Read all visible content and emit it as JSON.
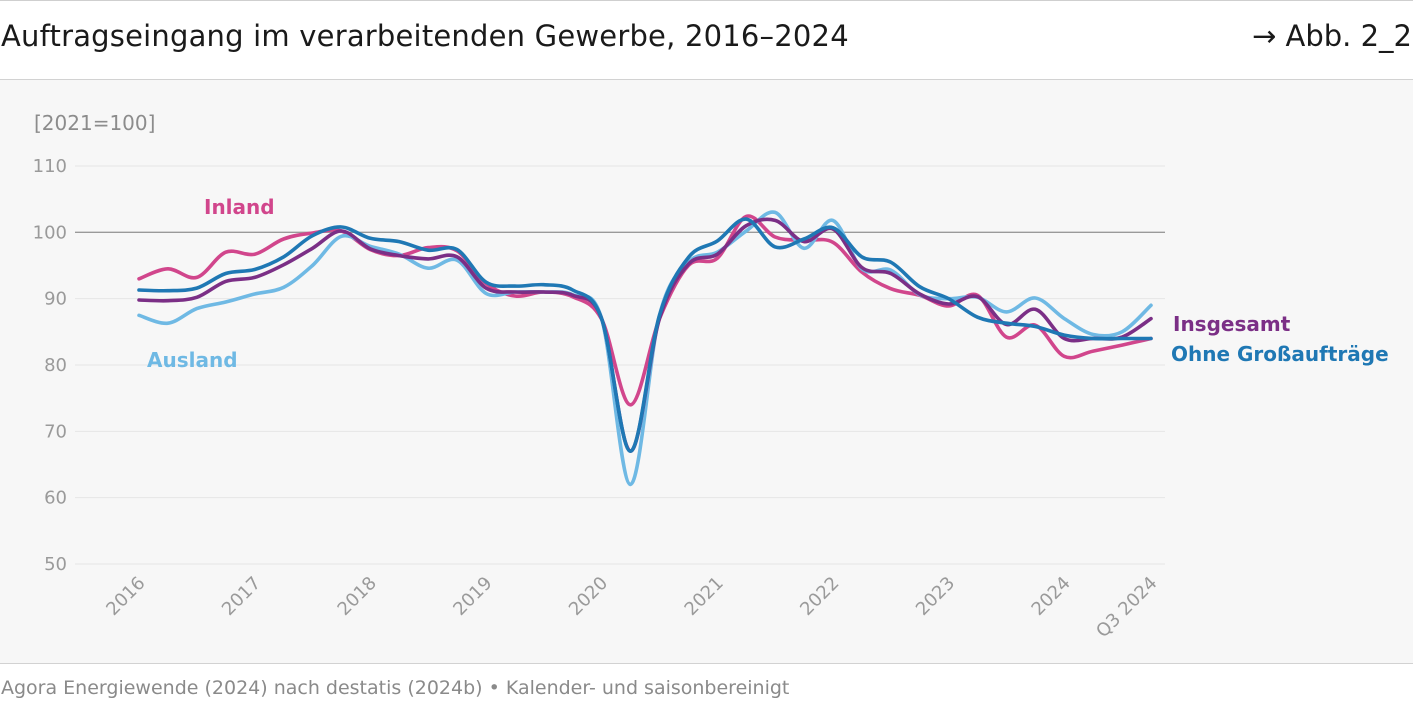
{
  "header": {
    "title": "Auftragseingang im verarbeitenden Gewerbe, 2016–2024",
    "reference": "→ Abb. 2_2"
  },
  "footer": {
    "source": "Agora Energiewende (2024) nach destatis (2024b) • Kalender- und saisonbereinigt"
  },
  "chart_data": {
    "type": "line",
    "unit_label": "[2021=100]",
    "ylim": [
      50,
      110
    ],
    "yticks": [
      50,
      60,
      70,
      80,
      90,
      100,
      110
    ],
    "xlim": [
      2016,
      2024.75
    ],
    "xticks": [
      {
        "x": 2016,
        "label": "2016"
      },
      {
        "x": 2017,
        "label": "2017"
      },
      {
        "x": 2018,
        "label": "2018"
      },
      {
        "x": 2019,
        "label": "2019"
      },
      {
        "x": 2020,
        "label": "2020"
      },
      {
        "x": 2021,
        "label": "2021"
      },
      {
        "x": 2022,
        "label": "2022"
      },
      {
        "x": 2023,
        "label": "2023"
      },
      {
        "x": 2024,
        "label": "2024"
      },
      {
        "x": 2024.75,
        "label": "Q3 2024"
      }
    ],
    "reference_line": 100,
    "grid": true,
    "series": [
      {
        "name": "Inland",
        "color": "#d1468c",
        "x": [
          2016.0,
          2016.25,
          2016.5,
          2016.75,
          2017.0,
          2017.25,
          2017.5,
          2017.75,
          2018.0,
          2018.25,
          2018.5,
          2018.75,
          2019.0,
          2019.25,
          2019.5,
          2019.75,
          2020.0,
          2020.25,
          2020.5,
          2020.75,
          2021.0,
          2021.25,
          2021.5,
          2021.75,
          2022.0,
          2022.25,
          2022.5,
          2022.75,
          2023.0,
          2023.25,
          2023.5,
          2023.75,
          2024.0,
          2024.25,
          2024.5,
          2024.75
        ],
        "values": [
          93.0,
          94.5,
          93.2,
          97.0,
          96.7,
          99.0,
          99.9,
          100.2,
          97.4,
          96.5,
          97.7,
          97.2,
          92.3,
          90.4,
          91.0,
          90.3,
          86.9,
          74.0,
          87.0,
          95.0,
          96.1,
          102.4,
          99.3,
          98.8,
          98.5,
          94.0,
          91.5,
          90.5,
          88.9,
          90.5,
          84.2,
          86.0,
          81.3,
          82.1,
          83.0,
          84.0
        ]
      },
      {
        "name": "Ausland",
        "color": "#6fb9e4",
        "x": [
          2016.0,
          2016.25,
          2016.5,
          2016.75,
          2017.0,
          2017.25,
          2017.5,
          2017.75,
          2018.0,
          2018.25,
          2018.5,
          2018.75,
          2019.0,
          2019.25,
          2019.5,
          2019.75,
          2020.0,
          2020.25,
          2020.5,
          2020.75,
          2021.0,
          2021.25,
          2021.5,
          2021.75,
          2022.0,
          2022.25,
          2022.5,
          2022.75,
          2023.0,
          2023.25,
          2023.5,
          2023.75,
          2024.0,
          2024.25,
          2024.5,
          2024.75
        ],
        "values": [
          87.5,
          86.3,
          88.5,
          89.5,
          90.7,
          91.7,
          95.0,
          99.4,
          97.9,
          96.7,
          94.6,
          95.8,
          90.8,
          91.0,
          91.0,
          90.6,
          87.0,
          62.0,
          87.5,
          95.5,
          97.0,
          100.2,
          103.0,
          97.6,
          101.8,
          94.5,
          94.3,
          90.6,
          90.0,
          90.2,
          88.0,
          90.1,
          87.0,
          84.6,
          85.0,
          89.0
        ]
      },
      {
        "name": "Insgesamt",
        "color": "#7b2f86",
        "x": [
          2016.0,
          2016.25,
          2016.5,
          2016.75,
          2017.0,
          2017.25,
          2017.5,
          2017.75,
          2018.0,
          2018.25,
          2018.5,
          2018.75,
          2019.0,
          2019.25,
          2019.5,
          2019.75,
          2020.0,
          2020.25,
          2020.5,
          2020.75,
          2021.0,
          2021.25,
          2021.5,
          2021.75,
          2022.0,
          2022.25,
          2022.5,
          2022.75,
          2023.0,
          2023.25,
          2023.5,
          2023.75,
          2024.0,
          2024.25,
          2024.5,
          2024.75
        ],
        "values": [
          89.8,
          89.7,
          90.2,
          92.6,
          93.2,
          95.1,
          97.6,
          100.2,
          97.5,
          96.5,
          96.0,
          96.3,
          91.6,
          91.0,
          91.0,
          90.5,
          87.0,
          67.0,
          87.0,
          95.2,
          96.7,
          101.0,
          101.8,
          98.6,
          100.5,
          94.7,
          93.8,
          90.7,
          89.2,
          90.3,
          86.1,
          88.4,
          84.0,
          84.0,
          84.2,
          87.0
        ]
      },
      {
        "name": "Ohne Großaufträge",
        "color": "#1f78b4",
        "x": [
          2016.0,
          2016.25,
          2016.5,
          2016.75,
          2017.0,
          2017.25,
          2017.5,
          2017.75,
          2018.0,
          2018.25,
          2018.5,
          2018.75,
          2019.0,
          2019.25,
          2019.5,
          2019.75,
          2020.0,
          2020.25,
          2020.5,
          2020.75,
          2021.0,
          2021.25,
          2021.5,
          2021.75,
          2022.0,
          2022.25,
          2022.5,
          2022.75,
          2023.0,
          2023.25,
          2023.5,
          2023.75,
          2024.0,
          2024.25,
          2024.5,
          2024.75
        ],
        "values": [
          91.3,
          91.2,
          91.6,
          93.8,
          94.4,
          96.3,
          99.5,
          100.8,
          99.1,
          98.6,
          97.3,
          97.4,
          92.5,
          91.9,
          92.1,
          91.3,
          87.0,
          67.0,
          87.5,
          96.2,
          98.7,
          102.0,
          97.8,
          99.0,
          100.7,
          96.3,
          95.5,
          91.8,
          90.0,
          87.2,
          86.3,
          85.8,
          84.5,
          84.0,
          84.0,
          84.0
        ]
      }
    ],
    "labels": [
      {
        "series": "Inland",
        "text": "Inland"
      },
      {
        "series": "Ausland",
        "text": "Ausland"
      },
      {
        "series": "Insgesamt",
        "text": "Insgesamt"
      },
      {
        "series": "Ohne Großaufträge",
        "text": "Ohne Großaufträge"
      }
    ]
  }
}
